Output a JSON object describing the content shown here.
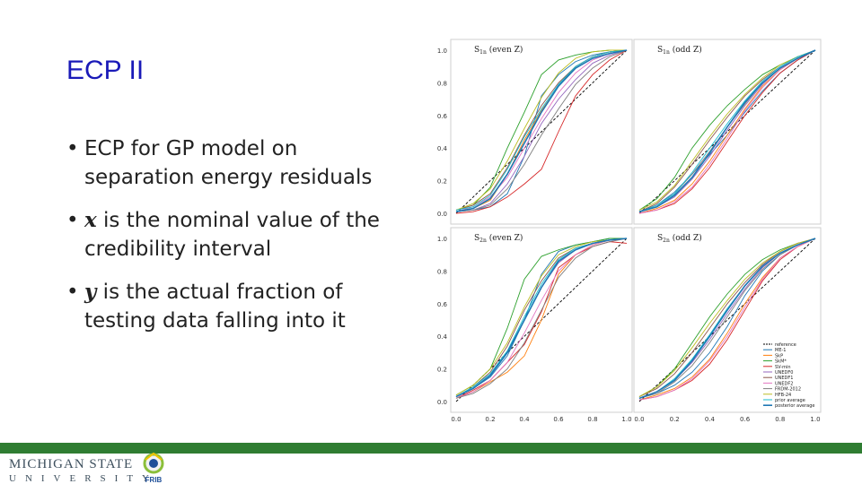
{
  "slide": {
    "title": "ECP II",
    "bullets": [
      {
        "dot": "•",
        "prefix": "",
        "var": "",
        "text": "ECP for GP model on separation energy residuals"
      },
      {
        "dot": "•",
        "prefix": "",
        "var": "x",
        "text": " is the nominal value of the credibility interval"
      },
      {
        "dot": "•",
        "prefix": "",
        "var": "y",
        "text": " is the actual fraction of testing data falling into it"
      }
    ]
  },
  "footer": {
    "university_line1": "MICHIGAN STATE",
    "university_line2": "UNIVERSITY",
    "lab": "FRIB",
    "colors": {
      "bar": "#2f7d32",
      "logo_text": "#3d4f5d"
    }
  },
  "chart_data": [
    {
      "type": "line",
      "panel_label": "S_{1n} (even Z)",
      "x_ticks": [
        "0.0",
        "0.2",
        "0.4",
        "0.6",
        "0.8",
        "1.0"
      ],
      "y_ticks": [
        "0.0",
        "0.2",
        "0.4",
        "0.6",
        "0.8",
        "1.0"
      ],
      "xlim": [
        0,
        1
      ],
      "ylim": [
        0,
        1
      ]
    },
    {
      "type": "line",
      "panel_label": "S_{1n} (odd Z)",
      "xlim": [
        0,
        1
      ],
      "ylim": [
        0,
        1
      ]
    },
    {
      "type": "line",
      "panel_label": "S_{2n} (even Z)",
      "xlim": [
        0,
        1
      ],
      "ylim": [
        0,
        1
      ]
    },
    {
      "type": "line",
      "panel_label": "S_{2n} (odd Z)",
      "xlim": [
        0,
        1
      ],
      "ylim": [
        0,
        1
      ]
    }
  ],
  "chart_common": {
    "x": [
      0.0,
      0.1,
      0.2,
      0.3,
      0.4,
      0.5,
      0.6,
      0.7,
      0.8,
      0.9,
      1.0
    ],
    "legend": [
      "reference",
      "ME-1",
      "SkP",
      "SkM*",
      "SV-min",
      "UNEDF0",
      "UNEDF1",
      "UNEDF2",
      "FRDM-2012",
      "HFB-24",
      "prior average",
      "posterior average"
    ],
    "legend_colors": [
      "#000000",
      "#1f77b4",
      "#ff7f0e",
      "#2ca02c",
      "#d62728",
      "#9467bd",
      "#8c564b",
      "#e377c2",
      "#7f7f7f",
      "#bcbd22",
      "#17becf",
      "#1f77b4"
    ],
    "legend_position": "lower right of bottom-right panel",
    "series_by_panel": [
      [
        [
          0,
          0.1,
          0.2,
          0.3,
          0.4,
          0.5,
          0.6,
          0.7,
          0.8,
          0.9,
          1.0
        ],
        [
          0.01,
          0.02,
          0.04,
          0.12,
          0.35,
          0.72,
          0.85,
          0.93,
          0.97,
          0.99,
          1.0
        ],
        [
          0.01,
          0.03,
          0.08,
          0.24,
          0.45,
          0.63,
          0.78,
          0.9,
          0.96,
          0.99,
          1.0
        ],
        [
          0.02,
          0.05,
          0.16,
          0.4,
          0.62,
          0.85,
          0.94,
          0.97,
          0.99,
          1.0,
          1.0
        ],
        [
          0.0,
          0.01,
          0.04,
          0.1,
          0.18,
          0.27,
          0.5,
          0.72,
          0.85,
          0.94,
          1.0
        ],
        [
          0.01,
          0.02,
          0.06,
          0.18,
          0.35,
          0.55,
          0.7,
          0.82,
          0.92,
          0.97,
          1.0
        ],
        [
          0.02,
          0.05,
          0.12,
          0.28,
          0.48,
          0.66,
          0.8,
          0.9,
          0.96,
          0.99,
          1.0
        ],
        [
          0.01,
          0.04,
          0.1,
          0.22,
          0.4,
          0.58,
          0.74,
          0.86,
          0.94,
          0.98,
          1.0
        ],
        [
          0.01,
          0.02,
          0.05,
          0.15,
          0.3,
          0.48,
          0.64,
          0.79,
          0.89,
          0.96,
          1.0
        ],
        [
          0.02,
          0.06,
          0.15,
          0.32,
          0.52,
          0.71,
          0.86,
          0.95,
          0.99,
          1.0,
          1.0
        ],
        [
          0.02,
          0.04,
          0.11,
          0.27,
          0.47,
          0.64,
          0.79,
          0.9,
          0.96,
          0.99,
          1.0
        ],
        [
          0.01,
          0.03,
          0.09,
          0.24,
          0.43,
          0.62,
          0.78,
          0.89,
          0.95,
          0.98,
          1.0
        ]
      ],
      [
        [
          0,
          0.1,
          0.2,
          0.3,
          0.4,
          0.5,
          0.6,
          0.7,
          0.8,
          0.9,
          1.0
        ],
        [
          0.01,
          0.05,
          0.13,
          0.24,
          0.36,
          0.48,
          0.62,
          0.75,
          0.86,
          0.94,
          1.0
        ],
        [
          0.0,
          0.03,
          0.08,
          0.18,
          0.32,
          0.48,
          0.64,
          0.78,
          0.88,
          0.95,
          1.0
        ],
        [
          0.02,
          0.09,
          0.22,
          0.4,
          0.54,
          0.66,
          0.76,
          0.85,
          0.91,
          0.96,
          1.0
        ],
        [
          0.0,
          0.02,
          0.06,
          0.15,
          0.28,
          0.44,
          0.6,
          0.74,
          0.86,
          0.94,
          1.0
        ],
        [
          0.01,
          0.04,
          0.1,
          0.21,
          0.35,
          0.51,
          0.66,
          0.79,
          0.89,
          0.95,
          1.0
        ],
        [
          0.01,
          0.06,
          0.16,
          0.3,
          0.45,
          0.59,
          0.72,
          0.82,
          0.9,
          0.96,
          1.0
        ],
        [
          0.0,
          0.02,
          0.07,
          0.16,
          0.3,
          0.46,
          0.63,
          0.77,
          0.88,
          0.95,
          1.0
        ],
        [
          0.01,
          0.05,
          0.12,
          0.24,
          0.38,
          0.53,
          0.67,
          0.8,
          0.89,
          0.95,
          1.0
        ],
        [
          0.02,
          0.07,
          0.17,
          0.32,
          0.47,
          0.61,
          0.73,
          0.83,
          0.91,
          0.96,
          1.0
        ],
        [
          0.01,
          0.05,
          0.12,
          0.25,
          0.4,
          0.55,
          0.69,
          0.81,
          0.9,
          0.96,
          1.0
        ],
        [
          0.01,
          0.04,
          0.11,
          0.22,
          0.37,
          0.53,
          0.68,
          0.8,
          0.89,
          0.95,
          1.0
        ]
      ],
      [
        [
          0,
          0.1,
          0.2,
          0.3,
          0.4,
          0.5,
          0.6,
          0.7,
          0.8,
          0.9,
          1.0
        ],
        [
          0.03,
          0.08,
          0.15,
          0.28,
          0.5,
          0.78,
          0.92,
          0.96,
          0.98,
          1.0,
          1.0
        ],
        [
          0.02,
          0.06,
          0.12,
          0.18,
          0.28,
          0.5,
          0.78,
          0.9,
          0.96,
          0.99,
          1.0
        ],
        [
          0.04,
          0.1,
          0.2,
          0.45,
          0.75,
          0.89,
          0.93,
          0.96,
          0.98,
          1.0,
          1.0
        ],
        [
          0.02,
          0.07,
          0.13,
          0.24,
          0.35,
          0.55,
          0.82,
          0.9,
          0.95,
          0.98,
          0.97
        ],
        [
          0.03,
          0.08,
          0.16,
          0.3,
          0.5,
          0.7,
          0.85,
          0.93,
          0.97,
          0.99,
          1.0
        ],
        [
          0.03,
          0.09,
          0.18,
          0.34,
          0.56,
          0.74,
          0.88,
          0.94,
          0.97,
          0.99,
          1.0
        ],
        [
          0.02,
          0.06,
          0.13,
          0.24,
          0.42,
          0.62,
          0.8,
          0.9,
          0.96,
          0.99,
          1.0
        ],
        [
          0.02,
          0.05,
          0.11,
          0.2,
          0.36,
          0.56,
          0.76,
          0.88,
          0.95,
          0.98,
          1.0
        ],
        [
          0.04,
          0.1,
          0.2,
          0.36,
          0.58,
          0.77,
          0.9,
          0.95,
          0.98,
          0.99,
          1.0
        ],
        [
          0.03,
          0.09,
          0.17,
          0.31,
          0.52,
          0.72,
          0.87,
          0.94,
          0.97,
          0.99,
          1.0
        ],
        [
          0.03,
          0.08,
          0.16,
          0.3,
          0.5,
          0.7,
          0.86,
          0.93,
          0.97,
          0.99,
          1.0
        ]
      ],
      [
        [
          0,
          0.1,
          0.2,
          0.3,
          0.4,
          0.5,
          0.6,
          0.7,
          0.8,
          0.9,
          1.0
        ],
        [
          0.02,
          0.05,
          0.1,
          0.18,
          0.3,
          0.46,
          0.65,
          0.8,
          0.9,
          0.96,
          1.0
        ],
        [
          0.01,
          0.04,
          0.08,
          0.15,
          0.26,
          0.42,
          0.6,
          0.76,
          0.88,
          0.95,
          1.0
        ],
        [
          0.03,
          0.09,
          0.2,
          0.36,
          0.52,
          0.66,
          0.78,
          0.87,
          0.93,
          0.97,
          1.0
        ],
        [
          0.01,
          0.03,
          0.07,
          0.13,
          0.23,
          0.38,
          0.56,
          0.74,
          0.87,
          0.95,
          1.0
        ],
        [
          0.02,
          0.06,
          0.13,
          0.24,
          0.38,
          0.54,
          0.69,
          0.82,
          0.91,
          0.96,
          1.0
        ],
        [
          0.03,
          0.08,
          0.17,
          0.3,
          0.45,
          0.6,
          0.73,
          0.84,
          0.92,
          0.97,
          1.0
        ],
        [
          0.01,
          0.03,
          0.07,
          0.14,
          0.25,
          0.4,
          0.58,
          0.75,
          0.88,
          0.95,
          1.0
        ],
        [
          0.02,
          0.05,
          0.12,
          0.22,
          0.36,
          0.52,
          0.68,
          0.81,
          0.9,
          0.96,
          1.0
        ],
        [
          0.03,
          0.09,
          0.19,
          0.33,
          0.48,
          0.62,
          0.75,
          0.85,
          0.92,
          0.97,
          1.0
        ],
        [
          0.02,
          0.06,
          0.14,
          0.26,
          0.41,
          0.57,
          0.71,
          0.83,
          0.91,
          0.96,
          1.0
        ],
        [
          0.02,
          0.06,
          0.13,
          0.25,
          0.4,
          0.56,
          0.71,
          0.83,
          0.91,
          0.96,
          1.0
        ]
      ]
    ]
  }
}
